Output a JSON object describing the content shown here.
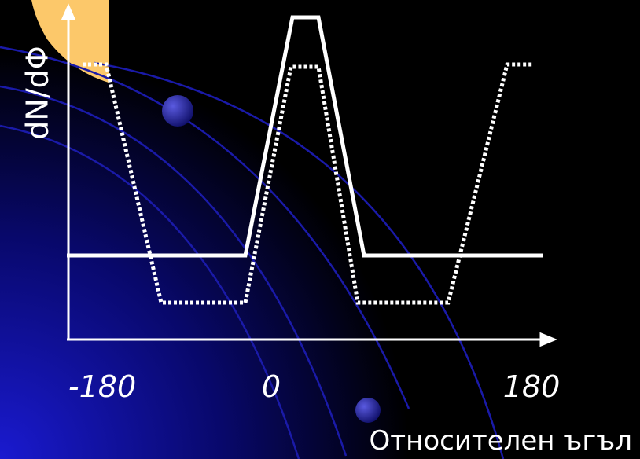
{
  "axes": {
    "y_label": "dN/dΦ",
    "x_label": "Относителен ъгъл",
    "x_tick_labels": [
      "-180",
      "0",
      "180"
    ]
  }
}
